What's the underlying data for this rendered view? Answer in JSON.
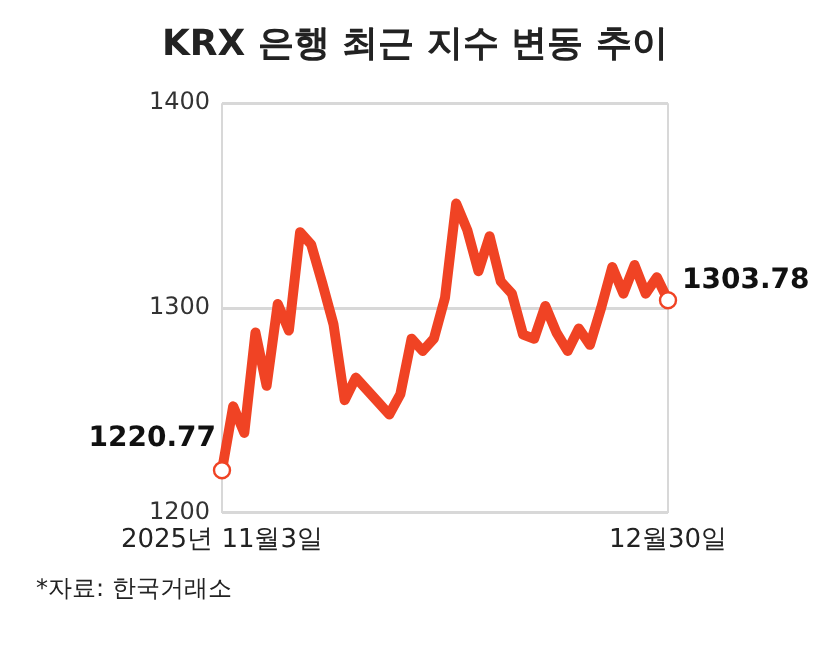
{
  "chart_data": {
    "type": "line",
    "title": "KRX 은행 최근 지수 변동 추이",
    "categories": [
      "2025년 11월3일",
      null,
      null,
      null,
      null,
      null,
      null,
      null,
      null,
      null,
      null,
      null,
      null,
      null,
      null,
      null,
      null,
      null,
      null,
      null,
      null,
      null,
      null,
      null,
      null,
      null,
      null,
      null,
      null,
      null,
      null,
      null,
      null,
      null,
      null,
      null,
      null,
      null,
      null,
      null,
      "12월30일"
    ],
    "series": [
      {
        "color": "#f04324",
        "values": [
          1220.77,
          1252,
          1239,
          1288,
          1262,
          1302,
          1289,
          1337,
          1331,
          1312,
          1292,
          1255,
          1266,
          1260,
          1254,
          1248,
          1258,
          1285,
          1279,
          1285,
          1305,
          1351,
          1338,
          1318,
          1335,
          1313,
          1307,
          1287,
          1285,
          1301,
          1288,
          1279,
          1290,
          1282,
          1300,
          1320,
          1307,
          1321,
          1307,
          1315,
          1303.78
        ],
        "value_labels": [
          "1220.77",
          null,
          null,
          null,
          null,
          null,
          null,
          null,
          null,
          null,
          null,
          null,
          null,
          null,
          null,
          null,
          null,
          null,
          null,
          null,
          null,
          null,
          null,
          null,
          null,
          null,
          null,
          null,
          null,
          null,
          null,
          null,
          null,
          null,
          null,
          null,
          null,
          null,
          null,
          null,
          "1303.78"
        ]
      }
    ],
    "ylim": [
      1200,
      1400
    ],
    "yticks": [
      1200,
      1300,
      1400
    ],
    "grid": true,
    "marker": "none",
    "line_style": "solid",
    "annotations": [
      "*자료: 한국거래소"
    ]
  }
}
